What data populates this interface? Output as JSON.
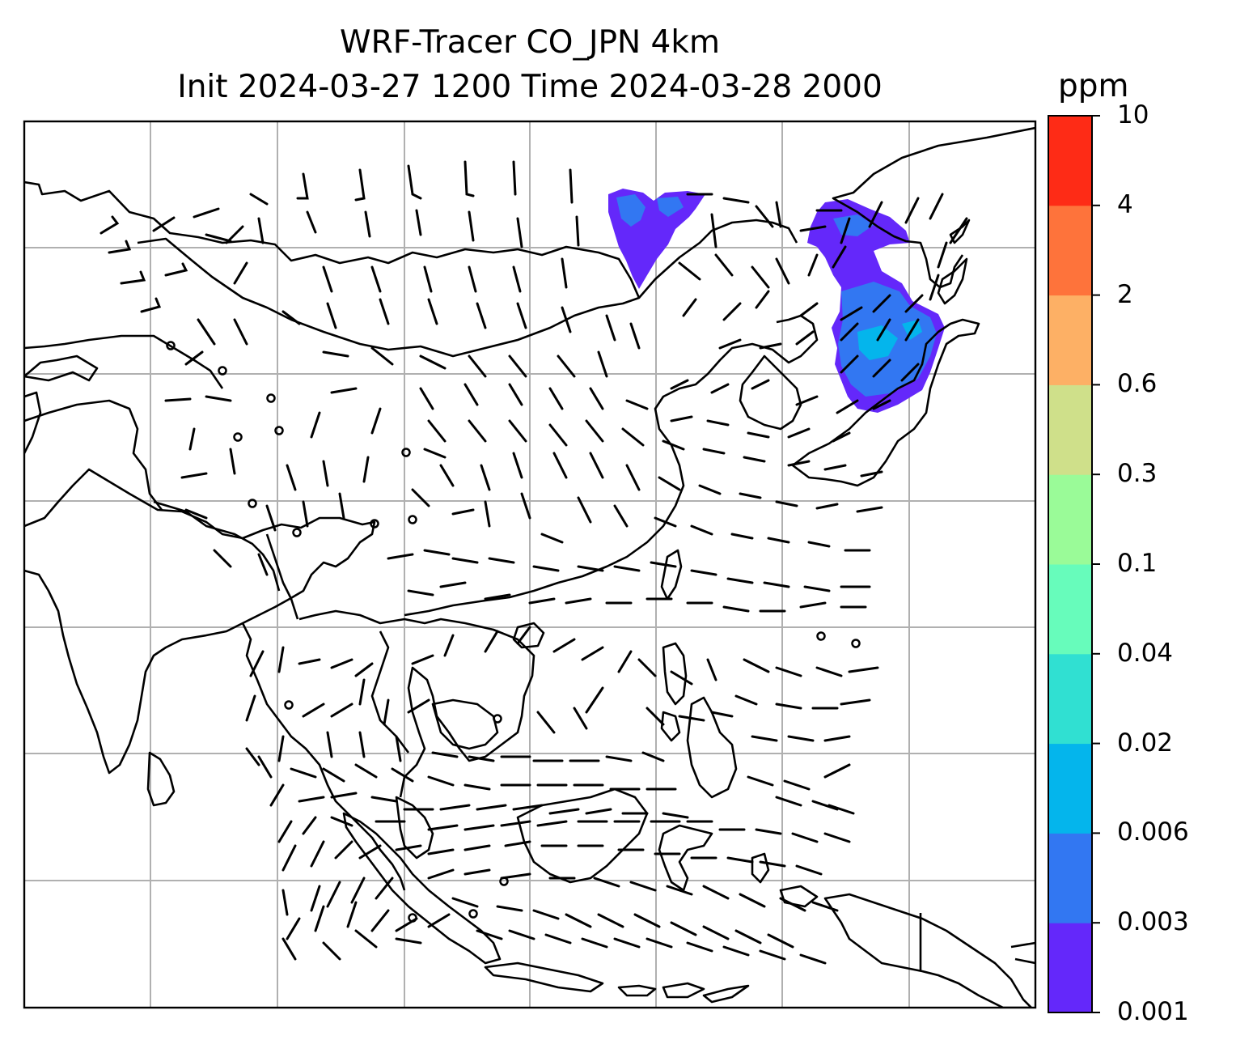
{
  "title": {
    "line1": "WRF-Tracer CO_JPN 4km",
    "line2": "Init 2024-03-27 1200 Time 2024-03-28 2000"
  },
  "colorbar": {
    "units": "ppm",
    "levels": [
      "0.001",
      "0.003",
      "0.006",
      "0.02",
      "0.04",
      "0.1",
      "0.3",
      "0.6",
      "2",
      "4",
      "10"
    ],
    "colors": [
      "#6428fa",
      "#3277f2",
      "#04b5ec",
      "#30e0d2",
      "#67fcbb",
      "#9afb98",
      "#cfe08a",
      "#fdb065",
      "#fe733b",
      "#fe2b16"
    ]
  },
  "map": {
    "grid_color": "#b0b0b0",
    "coast_color": "#000000",
    "wind_barbs": "black",
    "plume_regions": [
      "northeast-china-plume",
      "japan-korea-plume"
    ]
  }
}
